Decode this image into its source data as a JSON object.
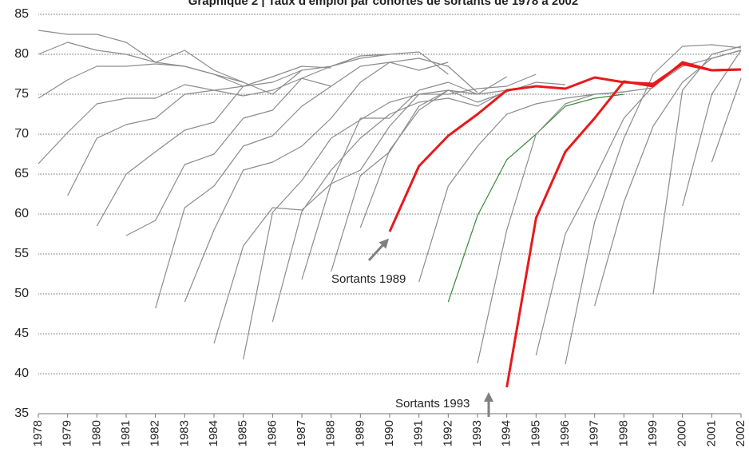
{
  "chart_data": {
    "type": "line",
    "title": "Graphique 2 | Taux d'emploi par cohortes de sortants de 1978 à 2002",
    "categories": [
      "1978",
      "1979",
      "1980",
      "1981",
      "1982",
      "1983",
      "1984",
      "1985",
      "1986",
      "1987",
      "1988",
      "1989",
      "1990",
      "1991",
      "1992",
      "1993",
      "1994",
      "1995",
      "1996",
      "1997",
      "1998",
      "1999",
      "2000",
      "2001",
      "2002"
    ],
    "ylim": [
      35,
      85
    ],
    "yticks": [
      35,
      40,
      45,
      50,
      55,
      60,
      65,
      70,
      75,
      80,
      85
    ],
    "grid": true,
    "series": [
      {
        "color": "#8c8c8c",
        "values": [
          83,
          82.5,
          82.5,
          81.5,
          79,
          80.5,
          78,
          76.5,
          null,
          null,
          null,
          null,
          null,
          null,
          null,
          null,
          null,
          null,
          null,
          null,
          null,
          null,
          null,
          null,
          null
        ]
      },
      {
        "color": "#8c8c8c",
        "values": [
          80,
          81.5,
          80.5,
          80,
          79,
          78.5,
          77.5,
          76,
          null,
          null,
          null,
          null,
          null,
          null,
          null,
          null,
          null,
          null,
          null,
          null,
          null,
          null,
          null,
          null,
          null
        ]
      },
      {
        "color": "#8c8c8c",
        "values": [
          74.5,
          76.8,
          78.5,
          78.5,
          78.8,
          78.5,
          77.5,
          76.5,
          75,
          78,
          null,
          null,
          null,
          null,
          null,
          null,
          null,
          null,
          null,
          null,
          null,
          null,
          null,
          null,
          null
        ]
      },
      {
        "color": "#8c8c8c",
        "values": [
          66.3,
          70.2,
          73.8,
          74.5,
          74.5,
          76.2,
          75.5,
          74.8,
          75.5,
          77,
          76,
          null,
          null,
          null,
          null,
          null,
          null,
          null,
          null,
          null,
          null,
          null,
          null,
          null,
          null
        ]
      },
      {
        "color": "#8c8c8c",
        "values": [
          null,
          62.3,
          69.5,
          71.2,
          72,
          75,
          75.5,
          76,
          77.2,
          78.5,
          78.3,
          null,
          null,
          null,
          null,
          null,
          null,
          null,
          null,
          null,
          null,
          null,
          null,
          null,
          null
        ]
      },
      {
        "color": "#8c8c8c",
        "values": [
          null,
          null,
          58.5,
          65,
          67.8,
          70.5,
          71.5,
          76,
          76.5,
          78,
          78.5,
          79.5,
          80,
          null,
          null,
          null,
          null,
          null,
          null,
          null,
          null,
          null,
          null,
          null,
          null
        ]
      },
      {
        "color": "#8c8c8c",
        "values": [
          null,
          null,
          null,
          57.3,
          59.2,
          66.2,
          67.5,
          72,
          73,
          77,
          78.5,
          79.8,
          80,
          80.3,
          77.5,
          null,
          null,
          null,
          null,
          null,
          null,
          null,
          null,
          null,
          null
        ]
      },
      {
        "color": "#8c8c8c",
        "values": [
          null,
          null,
          null,
          null,
          48.2,
          60.8,
          63.5,
          68.5,
          69.8,
          73.5,
          76,
          78.5,
          79,
          78,
          79,
          null,
          null,
          null,
          null,
          null,
          null,
          null,
          null,
          null,
          null
        ]
      },
      {
        "color": "#8c8c8c",
        "values": [
          null,
          null,
          null,
          null,
          null,
          49,
          58,
          65.5,
          66.5,
          68.5,
          72,
          76.5,
          79,
          79.5,
          78.5,
          75.2,
          null,
          null,
          null,
          null,
          null,
          null,
          null,
          null,
          null
        ]
      },
      {
        "color": "#8c8c8c",
        "values": [
          null,
          null,
          null,
          null,
          null,
          null,
          43.8,
          56,
          60.8,
          60.5,
          63.8,
          72,
          72,
          75.5,
          76.5,
          75,
          75.5,
          null,
          null,
          null,
          null,
          null,
          null,
          null,
          null
        ]
      },
      {
        "color": "#8c8c8c",
        "values": [
          null,
          null,
          null,
          null,
          null,
          null,
          null,
          41.8,
          60.2,
          64.2,
          69.5,
          71.8,
          74,
          75,
          75.5,
          75,
          null,
          null,
          null,
          null,
          null,
          null,
          null,
          null,
          null
        ]
      },
      {
        "color": "#8c8c8c",
        "values": [
          null,
          null,
          null,
          null,
          null,
          null,
          null,
          null,
          46.5,
          60.3,
          65.5,
          69.5,
          72.5,
          74,
          74.5,
          73.5,
          75.5,
          null,
          null,
          null,
          null,
          null,
          null,
          null,
          null
        ]
      },
      {
        "color": "#8c8c8c",
        "values": [
          null,
          null,
          null,
          null,
          null,
          null,
          null,
          null,
          null,
          51.8,
          63.8,
          65.5,
          71,
          75,
          75,
          75.7,
          76,
          77.5,
          null,
          null,
          null,
          null,
          null,
          null,
          null
        ]
      },
      {
        "color": "#8c8c8c",
        "values": [
          null,
          null,
          null,
          null,
          null,
          null,
          null,
          null,
          null,
          null,
          52.8,
          64.8,
          67.8,
          73.5,
          75.5,
          75,
          77.2,
          null,
          null,
          null,
          null,
          null,
          null,
          null,
          null
        ]
      },
      {
        "color": "#8c8c8c",
        "values": [
          null,
          null,
          null,
          null,
          null,
          null,
          null,
          null,
          null,
          null,
          null,
          58.3,
          68,
          73,
          75.5,
          74,
          75.3,
          76.5,
          76.2,
          null,
          null,
          null,
          null,
          null,
          null
        ]
      },
      {
        "color": "#8c8c8c",
        "values": [
          null,
          null,
          null,
          null,
          null,
          null,
          null,
          null,
          null,
          null,
          null,
          null,
          null,
          51.5,
          63.5,
          68.5,
          72.5,
          73.8,
          74.5,
          75,
          75.3,
          null,
          null,
          null,
          null
        ]
      },
      {
        "color": "#3a8a3a",
        "values": [
          null,
          null,
          null,
          null,
          null,
          null,
          null,
          null,
          null,
          null,
          null,
          null,
          null,
          null,
          49,
          59.8,
          66.8,
          70,
          73.5,
          74.5,
          75,
          null,
          null,
          null,
          null
        ]
      },
      {
        "color": "#8c8c8c",
        "values": [
          null,
          null,
          null,
          null,
          null,
          null,
          null,
          null,
          null,
          null,
          null,
          null,
          null,
          null,
          null,
          41.3,
          58,
          70,
          73.8,
          75,
          75.3,
          75.8,
          null,
          null,
          null
        ]
      },
      {
        "color": "#8c8c8c",
        "values": [
          null,
          null,
          null,
          null,
          null,
          null,
          null,
          null,
          null,
          null,
          null,
          null,
          null,
          null,
          null,
          null,
          null,
          42.3,
          57.5,
          64.5,
          72,
          76,
          78.5,
          79.5,
          80.5
        ]
      },
      {
        "color": "#8c8c8c",
        "values": [
          null,
          null,
          null,
          null,
          null,
          null,
          null,
          null,
          null,
          null,
          null,
          null,
          null,
          null,
          null,
          null,
          null,
          null,
          41.2,
          59,
          69.5,
          77.5,
          81,
          81.2,
          80.8
        ]
      },
      {
        "color": "#8c8c8c",
        "values": [
          null,
          null,
          null,
          null,
          null,
          null,
          null,
          null,
          null,
          null,
          null,
          null,
          null,
          null,
          null,
          null,
          null,
          null,
          null,
          48.5,
          61.5,
          71,
          76.5,
          79.5,
          80.5
        ]
      },
      {
        "color": "#8c8c8c",
        "values": [
          null,
          null,
          null,
          null,
          null,
          null,
          null,
          null,
          null,
          null,
          null,
          null,
          null,
          null,
          null,
          null,
          null,
          null,
          null,
          null,
          null,
          50,
          75.5,
          80,
          81
        ]
      },
      {
        "color": "#8c8c8c",
        "values": [
          null,
          null,
          null,
          null,
          null,
          null,
          null,
          null,
          null,
          null,
          null,
          null,
          null,
          null,
          null,
          null,
          null,
          null,
          null,
          null,
          null,
          null,
          61,
          75,
          80.5
        ]
      },
      {
        "color": "#8c8c8c",
        "values": [
          null,
          null,
          null,
          null,
          null,
          null,
          null,
          null,
          null,
          null,
          null,
          null,
          null,
          null,
          null,
          null,
          null,
          null,
          null,
          null,
          null,
          null,
          null,
          66.5,
          77
        ]
      },
      {
        "color": "#8c8c8c",
        "values": [
          null,
          null,
          null,
          null,
          null,
          null,
          null,
          null,
          null,
          null,
          null,
          null,
          null,
          null,
          null,
          null,
          null,
          null,
          null,
          null,
          null,
          null,
          null,
          null,
          72
        ]
      },
      {
        "name": "Sortants 1989",
        "color": "#e8191c",
        "values": [
          null,
          null,
          null,
          null,
          null,
          null,
          null,
          null,
          null,
          null,
          null,
          null,
          57.8,
          66,
          69.8,
          72.5,
          75.5,
          76,
          75.7,
          77.1,
          76.5,
          76.3,
          78.8,
          78,
          78.1
        ]
      },
      {
        "name": "Sortants 1993",
        "color": "#e8191c",
        "values": [
          null,
          null,
          null,
          null,
          null,
          null,
          null,
          null,
          null,
          null,
          null,
          null,
          null,
          null,
          null,
          null,
          38.3,
          59.5,
          67.8,
          72,
          76.6,
          76,
          79,
          78,
          78.1
        ]
      }
    ]
  }
}
